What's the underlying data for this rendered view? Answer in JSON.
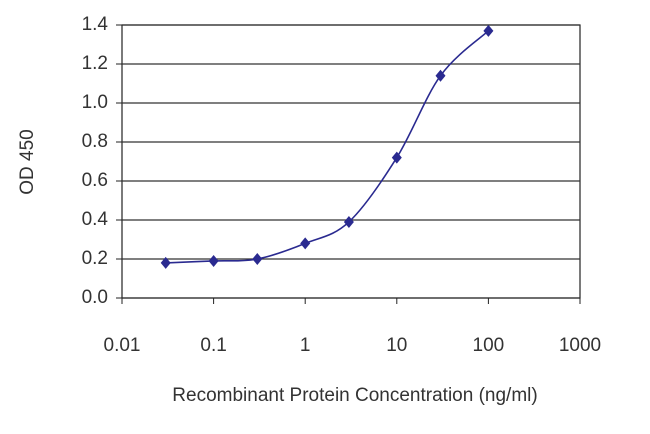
{
  "chart_data": {
    "type": "line",
    "xlabel": "Recombinant Protein Concentration (ng/ml)",
    "ylabel": "OD 450",
    "x": [
      0.03,
      0.1,
      0.3,
      1,
      3,
      10,
      30,
      100
    ],
    "series": [
      {
        "name": "OD",
        "color": "#2a2a90",
        "values": [
          0.18,
          0.19,
          0.2,
          0.28,
          0.39,
          0.72,
          1.14,
          1.37
        ]
      }
    ],
    "xlim": [
      0.01,
      1000
    ],
    "xticks": [
      0.01,
      0.1,
      1,
      10,
      100,
      1000
    ],
    "xscale": "log",
    "ylim": [
      0,
      1.4
    ],
    "yticks": [
      {
        "value": 0,
        "label": "0.0"
      },
      0.2,
      0.4,
      0.6,
      0.8,
      {
        "value": 1,
        "label": "1.0"
      },
      1.2,
      1.4
    ],
    "grid": true
  }
}
